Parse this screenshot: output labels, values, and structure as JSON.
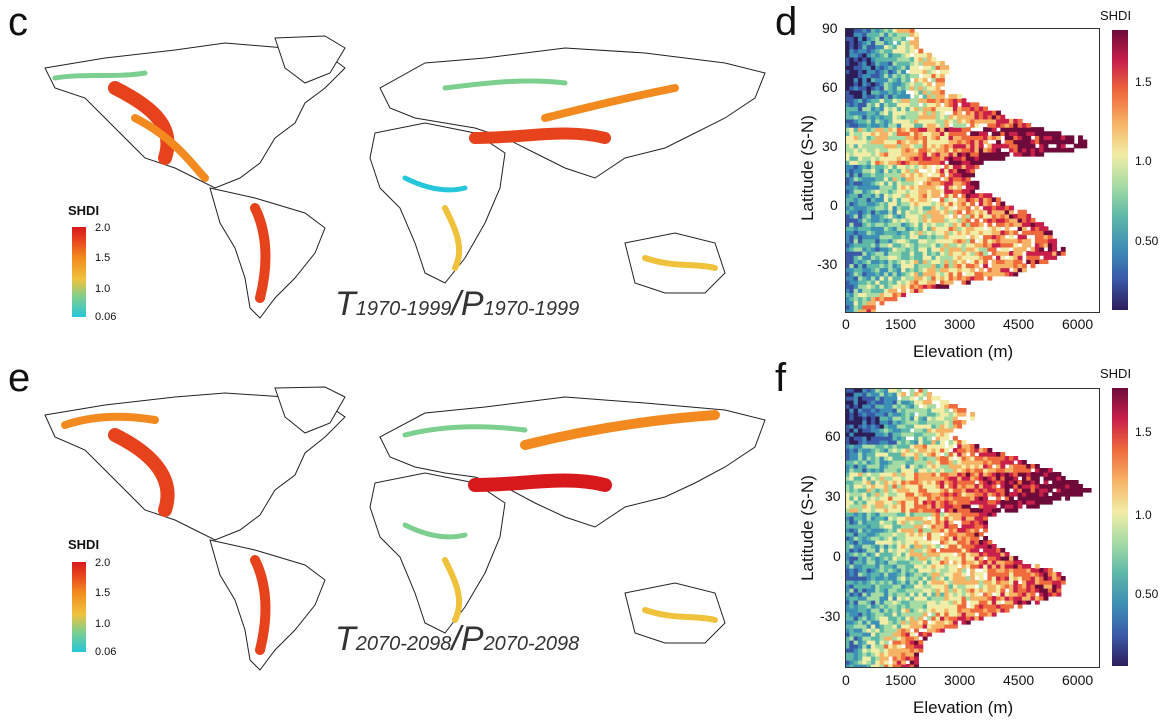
{
  "panels": {
    "c": "c",
    "d": "d",
    "e": "e",
    "f": "f"
  },
  "maps": [
    {
      "id": "c",
      "legend_title": "SHDI",
      "legend_ticks": [
        "2.0",
        "1.5",
        "1.0",
        "0.06"
      ],
      "label_T": "T",
      "label_T_sub": "1970-1999",
      "label_sep": "/P",
      "label_P_sub": "1970-1999"
    },
    {
      "id": "e",
      "legend_title": "SHDI",
      "legend_ticks": [
        "2.0",
        "1.5",
        "1.0",
        "0.06"
      ],
      "label_T": "T",
      "label_T_sub": "2070-2098",
      "label_sep": "/P",
      "label_P_sub": "2070-2098"
    }
  ],
  "chart_data": [
    {
      "id": "d",
      "type": "heatmap",
      "xlabel": "Elevation (m)",
      "ylabel": "Latitude (S-N)",
      "xlim": [
        0,
        6500
      ],
      "ylim": [
        -48,
        90
      ],
      "xticks": [
        "0",
        "1500",
        "3000",
        "4500",
        "6000"
      ],
      "yticks": [
        "90",
        "60",
        "30",
        "0",
        "-30"
      ],
      "colorbar_title": "SHDI",
      "colorbar_ticks": [
        "1.5",
        "1.0",
        "0.50"
      ],
      "colorbar_range": [
        0.1,
        1.8
      ],
      "colors": [
        "#2d1e5a",
        "#3a5aa8",
        "#3d8fb5",
        "#5db8a8",
        "#a6dba4",
        "#f2eda6",
        "#f6b365",
        "#ef6a3c",
        "#c8204b",
        "#6e0b3a"
      ],
      "profile": [
        {
          "lat": 80,
          "max_elev": 1800
        },
        {
          "lat": 70,
          "max_elev": 2600
        },
        {
          "lat": 60,
          "max_elev": 2400
        },
        {
          "lat": 50,
          "max_elev": 3600
        },
        {
          "lat": 40,
          "max_elev": 5000
        },
        {
          "lat": 35,
          "max_elev": 6200
        },
        {
          "lat": 30,
          "max_elev": 6000
        },
        {
          "lat": 25,
          "max_elev": 3500
        },
        {
          "lat": 20,
          "max_elev": 3200
        },
        {
          "lat": 10,
          "max_elev": 3400
        },
        {
          "lat": 0,
          "max_elev": 4600
        },
        {
          "lat": -10,
          "max_elev": 5200
        },
        {
          "lat": -20,
          "max_elev": 5600
        },
        {
          "lat": -30,
          "max_elev": 4300
        },
        {
          "lat": -40,
          "max_elev": 1500
        },
        {
          "lat": -46,
          "max_elev": 700
        }
      ]
    },
    {
      "id": "f",
      "type": "heatmap",
      "xlabel": "Elevation (m)",
      "ylabel": "Latitude (S-N)",
      "xlim": [
        0,
        6500
      ],
      "ylim": [
        -55,
        85
      ],
      "xticks": [
        "0",
        "1500",
        "3000",
        "4500",
        "6000"
      ],
      "yticks": [
        "60",
        "30",
        "0",
        "-30"
      ],
      "colorbar_title": "SHDI",
      "colorbar_ticks": [
        "1.5",
        "1.0",
        "0.50"
      ],
      "colorbar_range": [
        0.1,
        1.8
      ],
      "colors": [
        "#2d1e5a",
        "#3a5aa8",
        "#3d8fb5",
        "#5db8a8",
        "#a6dba4",
        "#f2eda6",
        "#f6b365",
        "#ef6a3c",
        "#c8204b",
        "#6e0b3a"
      ],
      "profile": [
        {
          "lat": 82,
          "max_elev": 2000
        },
        {
          "lat": 70,
          "max_elev": 3300
        },
        {
          "lat": 60,
          "max_elev": 2600
        },
        {
          "lat": 50,
          "max_elev": 4200
        },
        {
          "lat": 40,
          "max_elev": 5600
        },
        {
          "lat": 33,
          "max_elev": 6200
        },
        {
          "lat": 28,
          "max_elev": 5600
        },
        {
          "lat": 20,
          "max_elev": 3600
        },
        {
          "lat": 10,
          "max_elev": 3500
        },
        {
          "lat": 0,
          "max_elev": 4200
        },
        {
          "lat": -10,
          "max_elev": 5600
        },
        {
          "lat": -20,
          "max_elev": 5400
        },
        {
          "lat": -30,
          "max_elev": 3600
        },
        {
          "lat": -40,
          "max_elev": 2000
        },
        {
          "lat": -52,
          "max_elev": 1800
        }
      ]
    }
  ]
}
